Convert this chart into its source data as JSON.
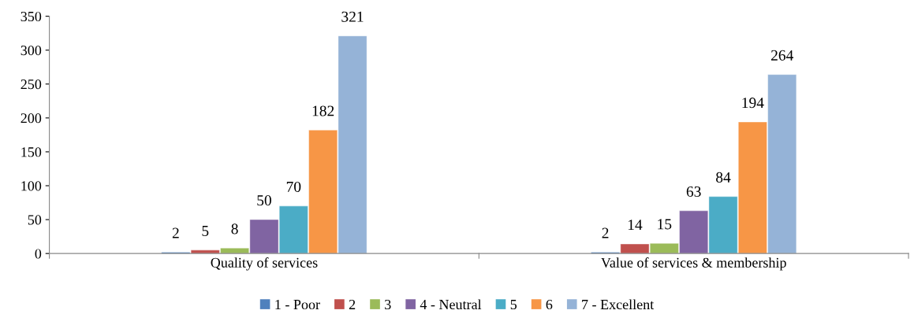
{
  "chart_data": {
    "type": "bar",
    "categories": [
      "Quality of services",
      "Value of services & membership"
    ],
    "series": [
      {
        "name": "1 - Poor",
        "color": "#4f81bd",
        "values": [
          2,
          2
        ]
      },
      {
        "name": "2",
        "color": "#c0504d",
        "values": [
          5,
          14
        ]
      },
      {
        "name": "3",
        "color": "#9bbb59",
        "values": [
          8,
          15
        ]
      },
      {
        "name": "4 - Neutral",
        "color": "#8064a2",
        "values": [
          50,
          63
        ]
      },
      {
        "name": "5",
        "color": "#4bacc6",
        "values": [
          70,
          84
        ]
      },
      {
        "name": "6",
        "color": "#f79646",
        "values": [
          182,
          194
        ]
      },
      {
        "name": "7 - Excellent",
        "color": "#95b3d7",
        "values": [
          321,
          264
        ]
      }
    ],
    "ylim": [
      0,
      350
    ],
    "yticks": [
      0,
      50,
      100,
      150,
      200,
      250,
      300,
      350
    ],
    "grid": false,
    "legend": "bottom",
    "data_labels": true
  }
}
